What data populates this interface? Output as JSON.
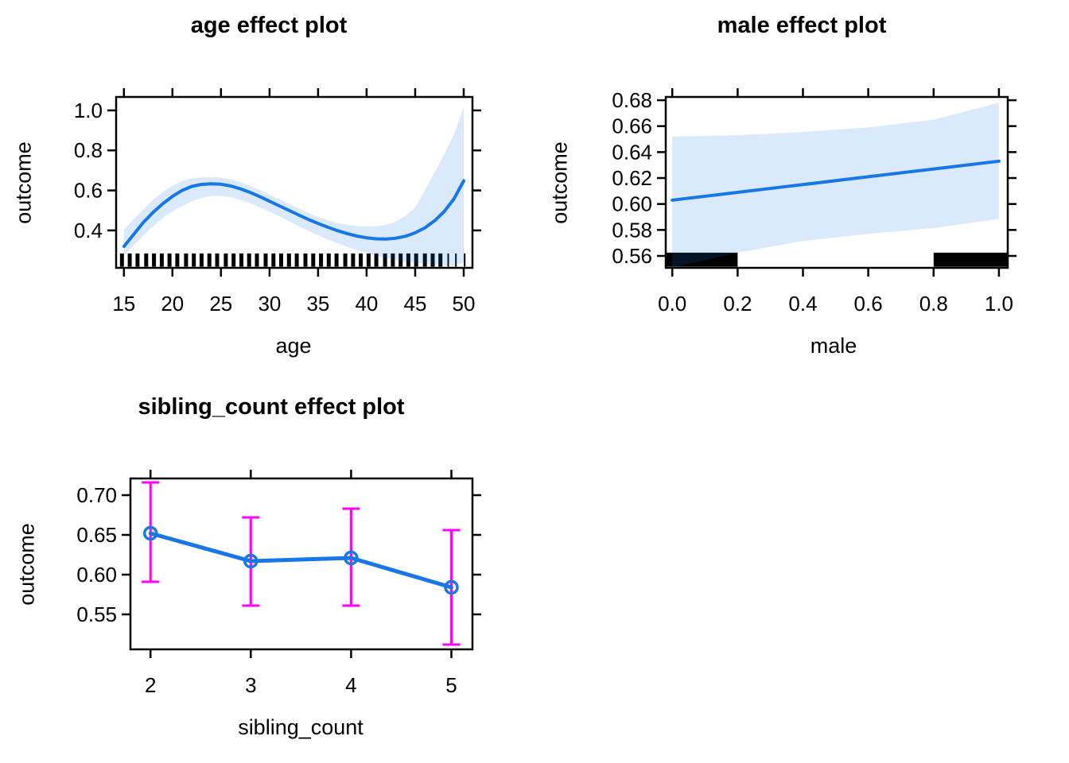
{
  "figure": {
    "background": "#FFFFFF",
    "colors": {
      "line": "#1777E8",
      "band": "rgba(23,119,232,0.16)",
      "error_bar": "#FF00FF",
      "rug": "#000000",
      "axis": "#000000",
      "text": "#000000"
    }
  },
  "chart_data": [
    {
      "id": "age",
      "type": "line",
      "title": "age effect plot",
      "xlabel": "age",
      "ylabel": "outcome",
      "legend": "none",
      "grid": false,
      "xlim": [
        14.2,
        50.9
      ],
      "ylim": [
        0.213,
        1.067
      ],
      "x_ticks": {
        "values": [
          15,
          20,
          25,
          30,
          35,
          40,
          45,
          50
        ],
        "labels": [
          "15",
          "20",
          "25",
          "30",
          "35",
          "40",
          "45",
          "50"
        ]
      },
      "y_ticks": {
        "values": [
          0.4,
          0.6,
          0.8,
          1.0
        ],
        "labels": [
          "0.4",
          "0.6",
          "0.8",
          "1.0"
        ]
      },
      "x": [
        15,
        16,
        17,
        18,
        19,
        20,
        21,
        22,
        23,
        24,
        25,
        26,
        27,
        28,
        29,
        30,
        31,
        32,
        33,
        34,
        35,
        36,
        37,
        38,
        39,
        40,
        41,
        42,
        43,
        44,
        45,
        46,
        47,
        48,
        49,
        50
      ],
      "fit": [
        0.32,
        0.38,
        0.44,
        0.49,
        0.533,
        0.57,
        0.6,
        0.62,
        0.63,
        0.633,
        0.631,
        0.622,
        0.608,
        0.59,
        0.569,
        0.546,
        0.523,
        0.5,
        0.477,
        0.455,
        0.435,
        0.416,
        0.399,
        0.384,
        0.372,
        0.363,
        0.358,
        0.357,
        0.361,
        0.371,
        0.388,
        0.413,
        0.448,
        0.495,
        0.558,
        0.648
      ],
      "upper": [
        0.405,
        0.455,
        0.505,
        0.553,
        0.592,
        0.623,
        0.646,
        0.66,
        0.666,
        0.667,
        0.664,
        0.655,
        0.641,
        0.622,
        0.601,
        0.578,
        0.555,
        0.532,
        0.509,
        0.487,
        0.467,
        0.45,
        0.436,
        0.428,
        0.422,
        0.419,
        0.42,
        0.428,
        0.444,
        0.472,
        0.515,
        0.6,
        0.69,
        0.78,
        0.88,
        1.015
      ],
      "lower": [
        0.275,
        0.325,
        0.375,
        0.42,
        0.462,
        0.495,
        0.522,
        0.545,
        0.562,
        0.572,
        0.573,
        0.566,
        0.553,
        0.536,
        0.516,
        0.494,
        0.47,
        0.446,
        0.421,
        0.398,
        0.376,
        0.355,
        0.336,
        0.318,
        0.302,
        0.288,
        0.274,
        0.262,
        0.252,
        0.244,
        0.238,
        0.233,
        0.229,
        0.226,
        0.225,
        0.238
      ],
      "rug": {
        "top": 0.285,
        "mark_width": 5,
        "thin_tail": 3,
        "x": [
          14.8,
          15.6,
          16.4,
          17.3,
          18.1,
          18.9,
          19.7,
          20.5,
          21.4,
          22.2,
          23.0,
          23.8,
          24.6,
          25.5,
          26.3,
          27.1,
          27.9,
          28.7,
          29.6,
          30.4,
          31.2,
          32.0,
          32.8,
          33.7,
          34.5,
          35.3,
          36.1,
          36.9,
          37.8,
          38.6,
          39.4,
          40.2,
          41.0,
          41.9,
          42.7,
          43.5,
          44.3,
          45.1,
          46.0,
          46.8,
          47.6,
          48.4,
          49.2,
          50.1
        ]
      }
    },
    {
      "id": "male",
      "type": "line",
      "title": "male effect plot",
      "xlabel": "male",
      "ylabel": "outcome",
      "legend": "none",
      "grid": false,
      "xlim": [
        -0.02,
        1.027
      ],
      "ylim": [
        0.5508,
        0.6825
      ],
      "x_ticks": {
        "values": [
          0.0,
          0.2,
          0.4,
          0.6,
          0.8,
          1.0
        ],
        "labels": [
          "0.0",
          "0.2",
          "0.4",
          "0.6",
          "0.8",
          "1.0"
        ]
      },
      "y_ticks": {
        "values": [
          0.56,
          0.58,
          0.6,
          0.62,
          0.64,
          0.66,
          0.68
        ],
        "labels": [
          "0.56",
          "0.58",
          "0.60",
          "0.62",
          "0.64",
          "0.66",
          "0.68"
        ]
      },
      "x": [
        0,
        0.2,
        0.4,
        0.6,
        0.8,
        1.0
      ],
      "fit": [
        0.603,
        0.609,
        0.615,
        0.621,
        0.627,
        0.633
      ],
      "upper": [
        0.652,
        0.653,
        0.6555,
        0.659,
        0.665,
        0.678
      ],
      "lower": [
        0.551,
        0.5625,
        0.5715,
        0.577,
        0.5815,
        0.5885
      ],
      "rug_bars": {
        "top": 0.5625,
        "ranges": [
          [
            -0.02,
            0.2
          ],
          [
            0.8,
            1.027
          ]
        ]
      }
    },
    {
      "id": "sibling",
      "type": "line-errorbar",
      "title": "sibling_count effect plot",
      "xlabel": "sibling_count",
      "ylabel": "outcome",
      "legend": "none",
      "grid": false,
      "xlim": [
        1.8,
        5.21
      ],
      "ylim": [
        0.506,
        0.721
      ],
      "x_ticks": {
        "values": [
          2,
          3,
          4,
          5
        ],
        "labels": [
          "2",
          "3",
          "4",
          "5"
        ]
      },
      "y_ticks": {
        "values": [
          0.55,
          0.6,
          0.65,
          0.7
        ],
        "labels": [
          "0.55",
          "0.60",
          "0.65",
          "0.70"
        ]
      },
      "x": [
        2,
        3,
        4,
        5
      ],
      "fit": [
        0.652,
        0.617,
        0.621,
        0.584
      ],
      "lower": [
        0.591,
        0.561,
        0.561,
        0.512
      ],
      "upper": [
        0.716,
        0.672,
        0.683,
        0.656
      ]
    }
  ]
}
